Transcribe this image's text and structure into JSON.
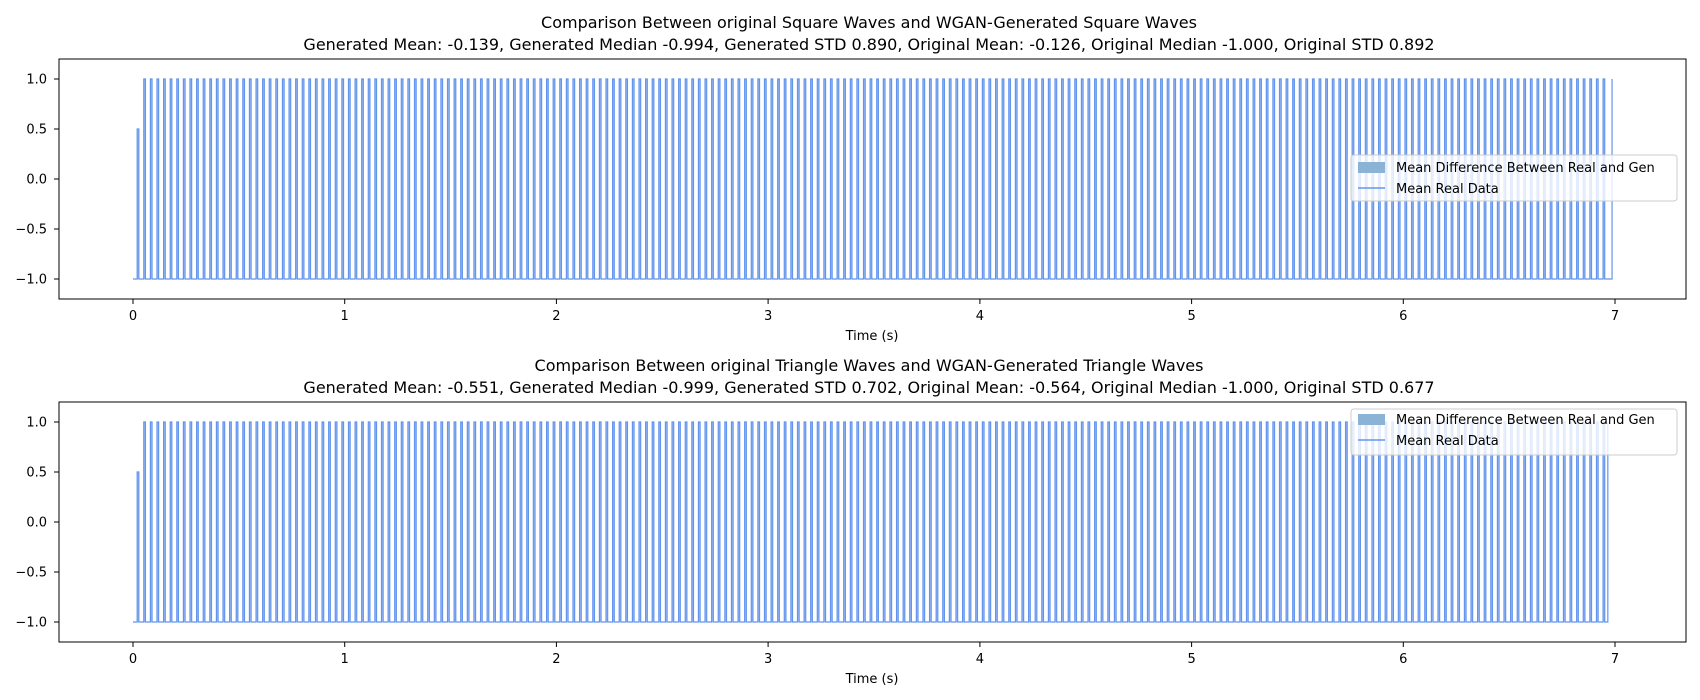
{
  "colors": {
    "line": "#6495ed",
    "fill": "#6495ed",
    "legend_patch": "#8ab3d6",
    "axes": "#000000",
    "background": "#ffffff"
  },
  "chart_data": [
    {
      "type": "line",
      "title": "Comparison Between original Square Waves and WGAN-Generated Square Waves",
      "subtitle": "Generated Mean: -0.139, Generated Median -0.994, Generated STD 0.890, Original Mean: -0.126, Original Median -1.000, Original STD 0.892",
      "xlabel": "Time (s)",
      "ylabel": "",
      "xlim": [
        -0.35,
        7.35
      ],
      "ylim": [
        -1.2,
        1.2
      ],
      "xticks": [
        "0",
        "1",
        "2",
        "3",
        "4",
        "5",
        "6",
        "7"
      ],
      "yticks": [
        "1.0",
        "0.5",
        "0.0",
        "−0.5",
        "−1.0"
      ],
      "grid": false,
      "legend_position": "center-right",
      "legend": [
        "Mean Difference Between Real and Gen",
        "Mean Real Data"
      ],
      "waveform": {
        "x_start": 0.0,
        "x_end": 7.0,
        "first_x": 0.02,
        "period": 0.03125,
        "y_min": -1.0,
        "y_max": 1.0,
        "first_peak": 0.5
      },
      "series": [
        {
          "name": "Mean Difference Between Real and Gen",
          "type": "fill"
        },
        {
          "name": "Mean Real Data",
          "type": "line"
        }
      ]
    },
    {
      "type": "line",
      "title": "Comparison Between original Triangle Waves and WGAN-Generated Triangle Waves",
      "subtitle": "Generated Mean: -0.551, Generated Median -0.999, Generated STD 0.702, Original Mean: -0.564, Original Median -1.000, Original STD 0.677",
      "xlabel": "Time (s)",
      "ylabel": "",
      "xlim": [
        -0.35,
        7.35
      ],
      "ylim": [
        -1.2,
        1.2
      ],
      "xticks": [
        "0",
        "1",
        "2",
        "3",
        "4",
        "5",
        "6",
        "7"
      ],
      "yticks": [
        "1.0",
        "0.5",
        "0.0",
        "−0.5",
        "−1.0"
      ],
      "grid": false,
      "legend_position": "top-right",
      "legend": [
        "Mean Difference Between Real and Gen",
        "Mean Real Data"
      ],
      "waveform": {
        "x_start": 0.0,
        "x_end": 6.98,
        "first_x": 0.02,
        "period": 0.03125,
        "y_min": -1.0,
        "y_max": 1.0,
        "first_peak": 0.5
      },
      "series": [
        {
          "name": "Mean Difference Between Real and Gen",
          "type": "fill"
        },
        {
          "name": "Mean Real Data",
          "type": "line"
        }
      ]
    }
  ]
}
